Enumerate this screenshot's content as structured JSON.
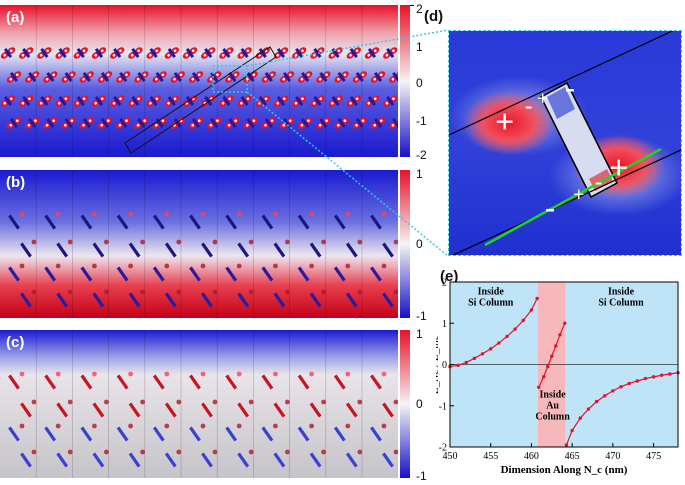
{
  "panels": {
    "a": {
      "letter": "(a)",
      "cbar_ticks": [
        "2",
        "1",
        "0",
        "-1",
        "-2"
      ]
    },
    "b": {
      "letter": "(b)",
      "cbar_ticks": [
        "1",
        "0",
        "-1"
      ]
    },
    "c": {
      "letter": "(c)",
      "cbar_ticks": [
        "1",
        "0",
        "-1"
      ]
    },
    "d": {
      "letter": "(d)",
      "plus": "+",
      "minus": "-"
    },
    "e": {
      "letter": "(e)"
    }
  },
  "colors": {
    "red": "#e8102a",
    "blue": "#1510c8",
    "white": "#f2f2f2",
    "green": "#22d41e",
    "cyan": "#35c8e8",
    "si_fill": "#bfe4f7",
    "au_fill": "#f7b8bc"
  },
  "chart_data": {
    "type": "line",
    "title": "",
    "xlabel": "Dimension Along N_c (nm)",
    "ylabel": "E_Nc / E_inc",
    "xlim": [
      450,
      478
    ],
    "ylim": [
      -2,
      2
    ],
    "xticks": [
      "450",
      "455",
      "460",
      "465",
      "470",
      "475"
    ],
    "yticks": [
      "2",
      "1",
      "0",
      "-1",
      "-2"
    ],
    "regions": [
      {
        "label_lines": [
          "Inside",
          "Si Column"
        ],
        "x": [
          450,
          460.8
        ]
      },
      {
        "label_lines": [
          "Inside",
          "Au",
          "Column"
        ],
        "x": [
          460.8,
          464.2
        ]
      },
      {
        "label_lines": [
          "Inside",
          "Si Column"
        ],
        "x": [
          464.2,
          478
        ]
      }
    ],
    "series": [
      {
        "x": [
          450,
          451,
          452,
          453,
          454,
          455,
          456,
          457,
          458,
          459,
          460,
          460.7
        ],
        "y": [
          -0.05,
          -0.02,
          0.05,
          0.15,
          0.26,
          0.38,
          0.52,
          0.68,
          0.86,
          1.07,
          1.32,
          1.6
        ]
      },
      {
        "x": [
          460.9,
          461.5,
          462,
          462.5,
          463,
          463.5,
          464.1
        ],
        "y": [
          -0.55,
          -0.3,
          -0.05,
          0.2,
          0.45,
          0.72,
          1.0
        ]
      },
      {
        "x": [
          464.3,
          465,
          466,
          467,
          468,
          469,
          470,
          471,
          472,
          473,
          474,
          475,
          476,
          477,
          478
        ],
        "y": [
          -1.95,
          -1.6,
          -1.3,
          -1.08,
          -0.9,
          -0.76,
          -0.64,
          -0.54,
          -0.46,
          -0.4,
          -0.34,
          -0.3,
          -0.26,
          -0.23,
          -0.2
        ]
      }
    ]
  }
}
